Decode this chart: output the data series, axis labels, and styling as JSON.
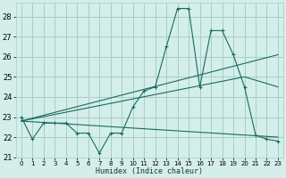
{
  "xlabel": "Humidex (Indice chaleur)",
  "bg_color": "#d4eeea",
  "grid_color": "#a8cdc8",
  "line_color": "#1a6b5e",
  "xlim": [
    -0.5,
    23.5
  ],
  "ylim": [
    21.0,
    28.7
  ],
  "xticks": [
    0,
    1,
    2,
    3,
    4,
    5,
    6,
    7,
    8,
    9,
    10,
    11,
    12,
    13,
    14,
    15,
    16,
    17,
    18,
    19,
    20,
    21,
    22,
    23
  ],
  "yticks": [
    21,
    22,
    23,
    24,
    25,
    26,
    27,
    28
  ],
  "series_main": {
    "x": [
      0,
      1,
      2,
      3,
      4,
      5,
      6,
      7,
      8,
      9,
      10,
      11,
      12,
      13,
      14,
      15,
      16,
      17,
      18,
      19,
      20,
      21,
      22,
      23
    ],
    "y": [
      23.0,
      21.9,
      22.7,
      22.7,
      22.7,
      22.2,
      22.2,
      21.2,
      22.2,
      22.2,
      23.5,
      24.3,
      24.5,
      26.5,
      28.4,
      28.4,
      24.5,
      27.3,
      27.3,
      26.1,
      24.5,
      22.1,
      21.9,
      21.8
    ]
  },
  "line_flat": {
    "x": [
      0,
      23
    ],
    "y": [
      22.8,
      22.0
    ]
  },
  "line_rise1": {
    "x": [
      0,
      23
    ],
    "y": [
      22.8,
      26.1
    ]
  },
  "line_rise2": {
    "x": [
      0,
      20,
      23
    ],
    "y": [
      22.8,
      25.0,
      24.5
    ]
  }
}
